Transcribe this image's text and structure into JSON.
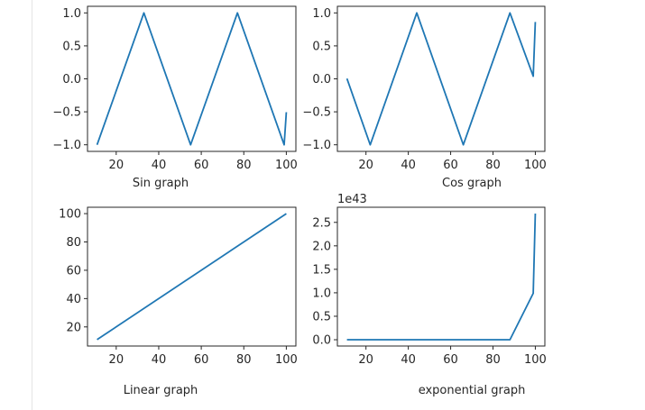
{
  "line_color": "#1f77b4",
  "chart_data": [
    {
      "type": "line",
      "title": "",
      "xlabel": "Sin graph",
      "ylabel": "",
      "x": [
        11,
        33,
        55,
        77,
        99,
        100
      ],
      "y": [
        -1.0,
        1.0,
        -1.0,
        1.0,
        -1.0,
        -0.506
      ],
      "xlim": [
        6.5,
        104.5
      ],
      "ylim": [
        -1.1,
        1.1
      ],
      "xticks": [
        "20",
        "40",
        "60",
        "80",
        "100"
      ],
      "xtick_values": [
        20,
        40,
        60,
        80,
        100
      ],
      "yticks": [
        "−1.0",
        "−0.5",
        "0.0",
        "0.5",
        "1.0"
      ],
      "ytick_values": [
        -1.0,
        -0.5,
        0.0,
        0.5,
        1.0
      ],
      "offset_text": "",
      "grid": false
    },
    {
      "type": "line",
      "title": "",
      "xlabel": "Cos graph",
      "ylabel": "",
      "x": [
        11,
        22,
        44,
        66,
        88,
        99,
        100
      ],
      "y": [
        0.004,
        -1.0,
        1.0,
        -1.0,
        1.0,
        0.04,
        0.862
      ],
      "xlim": [
        6.5,
        104.5
      ],
      "ylim": [
        -1.1,
        1.1
      ],
      "xticks": [
        "20",
        "40",
        "60",
        "80",
        "100"
      ],
      "xtick_values": [
        20,
        40,
        60,
        80,
        100
      ],
      "yticks": [
        "−1.0",
        "−0.5",
        "0.0",
        "0.5",
        "1.0"
      ],
      "ytick_values": [
        -1.0,
        -0.5,
        0.0,
        0.5,
        1.0
      ],
      "offset_text": "",
      "grid": false
    },
    {
      "type": "line",
      "title": "",
      "xlabel": "Linear graph",
      "ylabel": "",
      "x": [
        11,
        100
      ],
      "y": [
        11,
        100
      ],
      "xlim": [
        6.5,
        104.5
      ],
      "ylim": [
        6.5,
        104.5
      ],
      "xticks": [
        "20",
        "40",
        "60",
        "80",
        "100"
      ],
      "xtick_values": [
        20,
        40,
        60,
        80,
        100
      ],
      "yticks": [
        "20",
        "40",
        "60",
        "80",
        "100"
      ],
      "ytick_values": [
        20,
        40,
        60,
        80,
        100
      ],
      "offset_text": "",
      "grid": false
    },
    {
      "type": "line",
      "title": "",
      "xlabel": "exponential graph",
      "ylabel": "",
      "x": [
        11,
        88,
        99,
        100
      ],
      "y": [
        0.0,
        0.0,
        0.989,
        2.688
      ],
      "y_scale": "1e43",
      "xlim": [
        6.5,
        104.5
      ],
      "ylim": [
        -0.134,
        2.822
      ],
      "xticks": [
        "20",
        "40",
        "60",
        "80",
        "100"
      ],
      "xtick_values": [
        20,
        40,
        60,
        80,
        100
      ],
      "yticks": [
        "0.0",
        "0.5",
        "1.0",
        "1.5",
        "2.0",
        "2.5"
      ],
      "ytick_values": [
        0.0,
        0.5,
        1.0,
        1.5,
        2.0,
        2.5
      ],
      "offset_text": "1e43",
      "grid": false
    }
  ]
}
